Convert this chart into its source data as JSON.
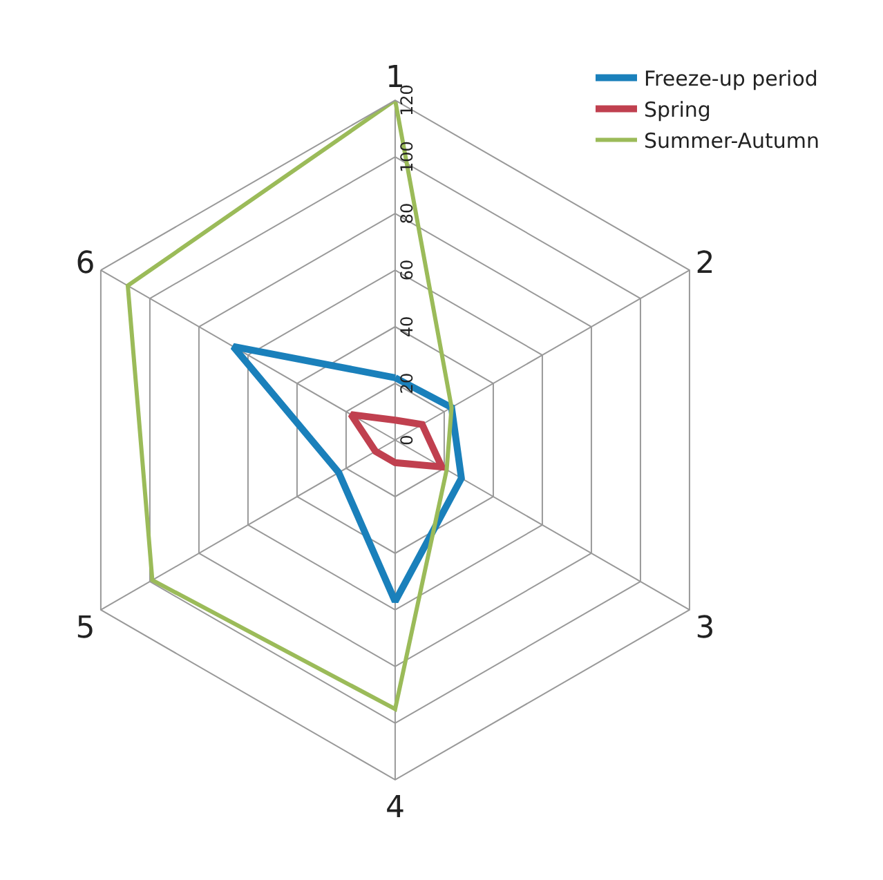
{
  "chart_data": {
    "type": "radar",
    "categories": [
      "1",
      "2",
      "3",
      "4",
      "5",
      "6"
    ],
    "ylim": [
      0,
      120
    ],
    "yticks": [
      0,
      20,
      40,
      60,
      80,
      100,
      120
    ],
    "grid": true,
    "legend": "top right",
    "marker": "none",
    "series": [
      {
        "name": "Freeze-up period",
        "color": "#1a80bb",
        "values": [
          22,
          23,
          27,
          57,
          23,
          66
        ]
      },
      {
        "name": "Spring",
        "color": "#c0404f",
        "values": [
          7,
          11,
          19,
          8,
          8,
          18
        ]
      },
      {
        "name": "Summer-Autumn",
        "color": "#9bbb59",
        "values": [
          120,
          23,
          21,
          95,
          99,
          109
        ]
      }
    ]
  }
}
